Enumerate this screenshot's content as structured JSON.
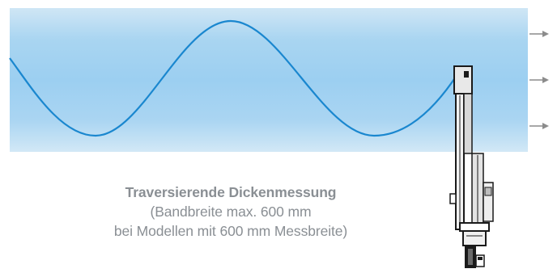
{
  "caption": {
    "title": "Traversierende Dickenmessung",
    "line2": "(Bandbreite max. 600 mm",
    "line3": "bei Modellen mit 600 mm Messbreite)"
  },
  "colors": {
    "band_gradient_light": "#d2e8f6",
    "band_gradient_mid": "#9ccff1",
    "wave": "#1a87cf",
    "arrow": "#8c8c8c",
    "device": "#1a1a1a"
  },
  "icons": [
    "right-arrow-icon",
    "right-arrow-icon",
    "right-arrow-icon"
  ]
}
